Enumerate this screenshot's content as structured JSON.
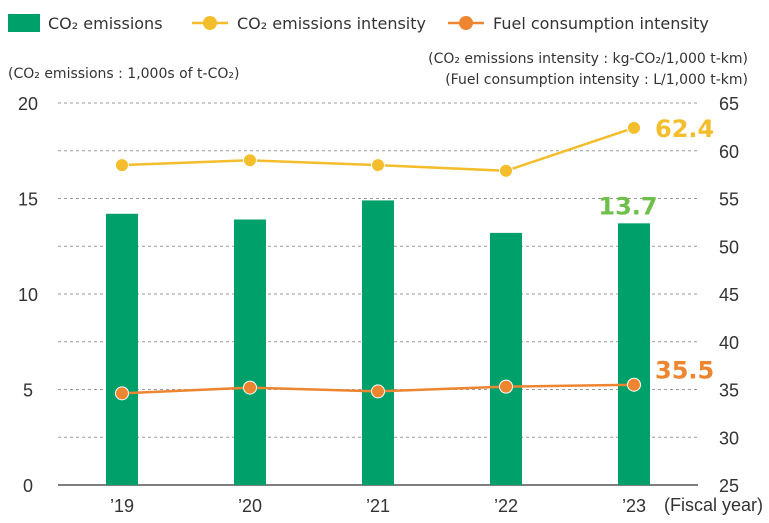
{
  "chart_data": {
    "type": "bar",
    "categories": [
      "’19",
      "’20",
      "’21",
      "’22",
      "’23"
    ],
    "x_unit_label": "(Fiscal year)",
    "series": [
      {
        "name": "CO₂ emissions",
        "type": "bar",
        "axis": "left",
        "color": "#00a06b",
        "values": [
          14.2,
          13.9,
          14.9,
          13.2,
          13.7
        ]
      },
      {
        "name": "CO₂ emissions intensity",
        "type": "line",
        "axis": "right",
        "color": "#f3bd2b",
        "values": [
          58.5,
          59.0,
          58.5,
          57.9,
          62.4
        ]
      },
      {
        "name": "Fuel consumption intensity",
        "type": "line",
        "axis": "right",
        "color": "#ee8530",
        "values": [
          34.6,
          35.2,
          34.8,
          35.3,
          35.5
        ]
      }
    ],
    "left_axis": {
      "label": "(CO₂ emissions : 1,000s of t-CO₂)",
      "ylim": [
        0,
        20
      ],
      "ticks": [
        "0",
        "5",
        "10",
        "15",
        "20"
      ]
    },
    "right_axis": {
      "label_line1": "(CO₂ emissions intensity : kg-CO₂/1,000 t-km)",
      "label_line2": "(Fuel consumption intensity : L/1,000 t-km)",
      "ylim": [
        25,
        65
      ],
      "ticks": [
        "25",
        "30",
        "35",
        "40",
        "45",
        "50",
        "55",
        "60",
        "65"
      ]
    },
    "callouts": {
      "bar_last": "13.7",
      "co2_intensity_last": "62.4",
      "fuel_intensity_last": "35.5"
    },
    "grid": true,
    "legend_position": "top-left"
  }
}
